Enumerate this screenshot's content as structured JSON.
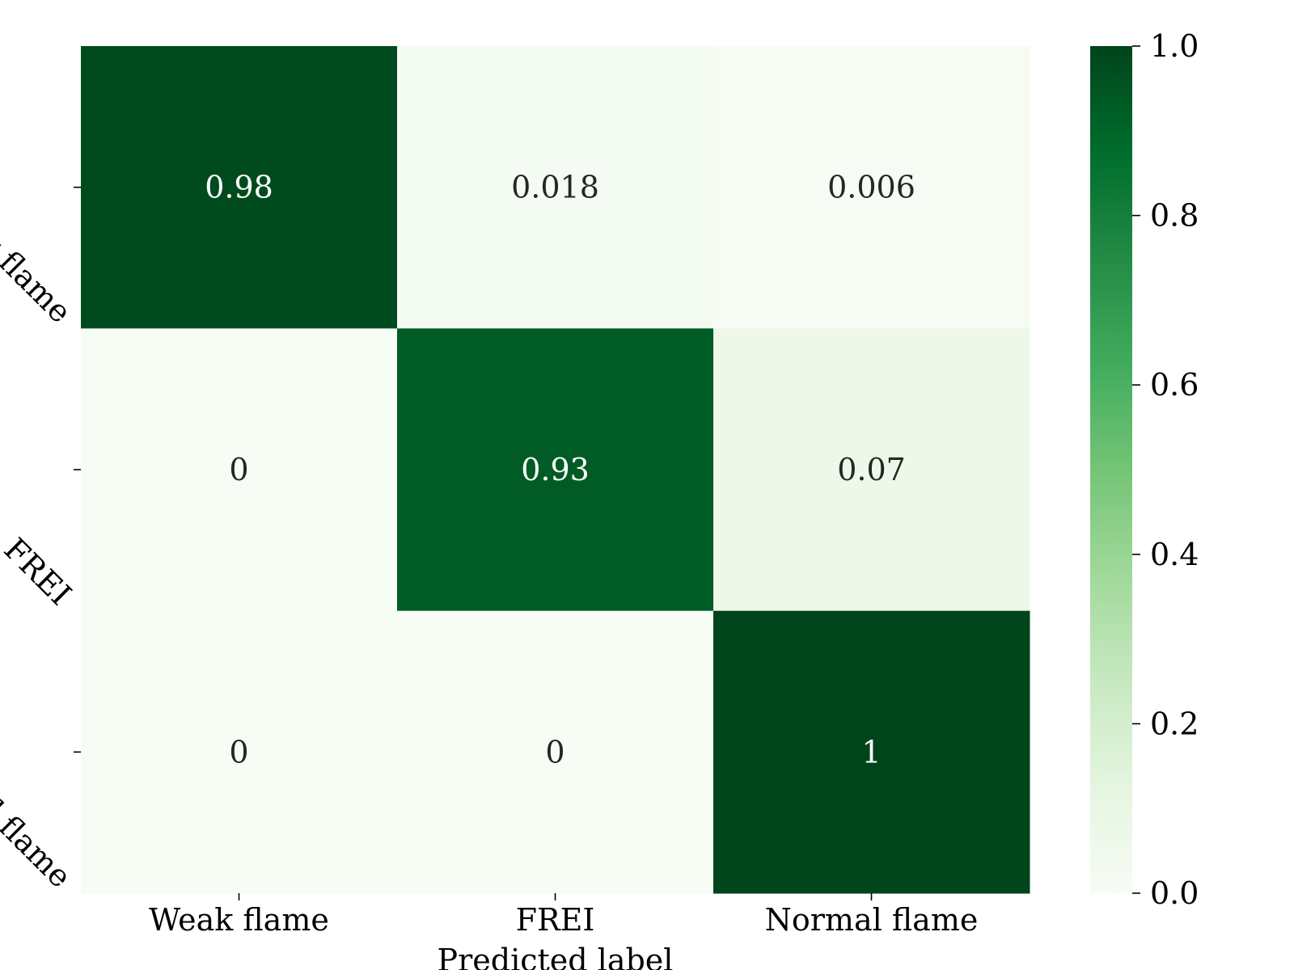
{
  "chart_data": {
    "type": "heatmap",
    "xlabel": "Predicted label",
    "ylabel": "",
    "x_categories": [
      "Weak flame",
      "FREI",
      "Normal flame"
    ],
    "y_categories": [
      "Weak flame",
      "FREI",
      "Normal flame"
    ],
    "values": [
      [
        0.98,
        0.018,
        0.006
      ],
      [
        0,
        0.93,
        0.07
      ],
      [
        0,
        0,
        1
      ]
    ],
    "cell_labels": [
      [
        "0.98",
        "0.018",
        "0.006"
      ],
      [
        "0",
        "0.93",
        "0.07"
      ],
      [
        "0",
        "0",
        "1"
      ]
    ],
    "colormap": "Greens",
    "color_range": [
      0.0,
      1.0
    ],
    "colorbar_ticks": [
      "0.0",
      "0.2",
      "0.4",
      "0.6",
      "0.8",
      "1.0"
    ],
    "colorbar_tick_values": [
      0.0,
      0.2,
      0.4,
      0.6,
      0.8,
      1.0
    ],
    "colorbar_colors": [
      "#f7fcf5",
      "#e5f5e0",
      "#c7e9c0",
      "#a1d99b",
      "#74c476",
      "#41ab5d",
      "#238b45",
      "#006d2c",
      "#00441b"
    ],
    "text_color_dark": "#262626",
    "text_color_light": "#ffffff",
    "grid": false
  }
}
